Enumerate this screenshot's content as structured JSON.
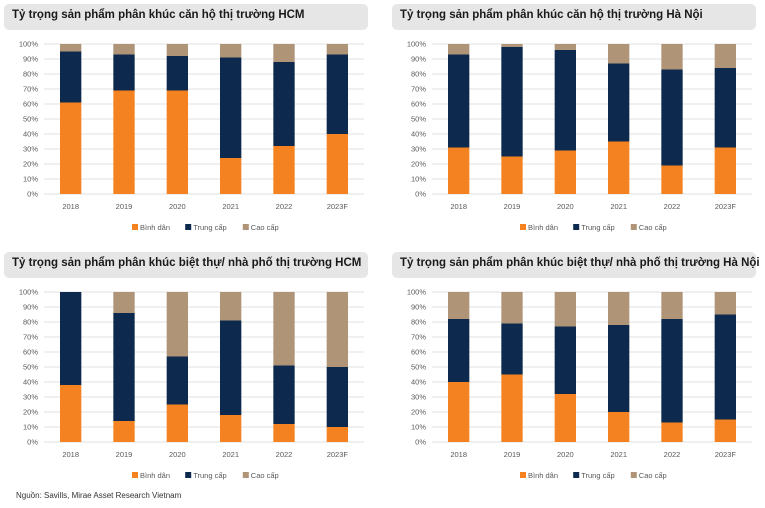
{
  "colors": {
    "binh_dan": "#f58220",
    "trung_cap": "#0d2a4e",
    "cao_cap": "#b09478",
    "grid": "#d9d9d9"
  },
  "source": "Nguồn: Savills, Mirae Asset Research Vietnam",
  "chart_data": [
    {
      "type": "bar",
      "stacked": true,
      "title": "Tỷ trọng sản phẩm phân khúc căn hộ thị trường HCM",
      "categories": [
        "2018",
        "2019",
        "2020",
        "2021",
        "2022",
        "2023F"
      ],
      "series": [
        {
          "name": "Bình dân",
          "values": [
            61,
            69,
            69,
            24,
            32,
            40
          ]
        },
        {
          "name": "Trung cấp",
          "values": [
            34,
            24,
            23,
            67,
            56,
            53
          ]
        },
        {
          "name": "Cao cấp",
          "values": [
            5,
            7,
            8,
            9,
            12,
            7
          ]
        }
      ],
      "yticks": [
        "0%",
        "10%",
        "20%",
        "30%",
        "40%",
        "50%",
        "60%",
        "70%",
        "80%",
        "90%",
        "100%"
      ],
      "ylim": [
        0,
        100
      ],
      "grid": true,
      "legend": "bottom"
    },
    {
      "type": "bar",
      "stacked": true,
      "title": "Tỷ trọng sản phẩm phân khúc căn hộ thị trường Hà Nội",
      "categories": [
        "2018",
        "2019",
        "2020",
        "2021",
        "2022",
        "2023F"
      ],
      "series": [
        {
          "name": "Bình dân",
          "values": [
            31,
            25,
            29,
            35,
            19,
            31
          ]
        },
        {
          "name": "Trung cấp",
          "values": [
            62,
            73,
            67,
            52,
            64,
            53
          ]
        },
        {
          "name": "Cao cấp",
          "values": [
            7,
            2,
            4,
            13,
            17,
            16
          ]
        }
      ],
      "yticks": [
        "0%",
        "10%",
        "20%",
        "30%",
        "40%",
        "50%",
        "60%",
        "70%",
        "80%",
        "90%",
        "100%"
      ],
      "ylim": [
        0,
        100
      ],
      "grid": true,
      "legend": "bottom"
    },
    {
      "type": "bar",
      "stacked": true,
      "title": "Tỷ trọng sản phẩm phân khúc biệt thự/ nhà phố thị trường HCM",
      "categories": [
        "2018",
        "2019",
        "2020",
        "2021",
        "2022",
        "2023F"
      ],
      "series": [
        {
          "name": "Bình dân",
          "values": [
            38,
            14,
            25,
            18,
            12,
            10
          ]
        },
        {
          "name": "Trung cấp",
          "values": [
            62,
            72,
            32,
            63,
            39,
            40
          ]
        },
        {
          "name": "Cao cấp",
          "values": [
            0,
            14,
            43,
            19,
            49,
            50
          ]
        }
      ],
      "yticks": [
        "0%",
        "10%",
        "20%",
        "30%",
        "40%",
        "50%",
        "60%",
        "70%",
        "80%",
        "90%",
        "100%"
      ],
      "ylim": [
        0,
        100
      ],
      "grid": true,
      "legend": "bottom"
    },
    {
      "type": "bar",
      "stacked": true,
      "title": "Tỷ trọng sản phẩm phân khúc biệt thự/ nhà phố thị trường Hà Nội",
      "categories": [
        "2018",
        "2019",
        "2020",
        "2021",
        "2022",
        "2023F"
      ],
      "series": [
        {
          "name": "Bình dân",
          "values": [
            40,
            45,
            32,
            20,
            13,
            15
          ]
        },
        {
          "name": "Trung cấp",
          "values": [
            42,
            34,
            45,
            58,
            69,
            70
          ]
        },
        {
          "name": "Cao cấp",
          "values": [
            18,
            21,
            23,
            22,
            18,
            15
          ]
        }
      ],
      "yticks": [
        "0%",
        "10%",
        "20%",
        "30%",
        "40%",
        "50%",
        "60%",
        "70%",
        "80%",
        "90%",
        "100%"
      ],
      "ylim": [
        0,
        100
      ],
      "grid": true,
      "legend": "bottom"
    }
  ]
}
